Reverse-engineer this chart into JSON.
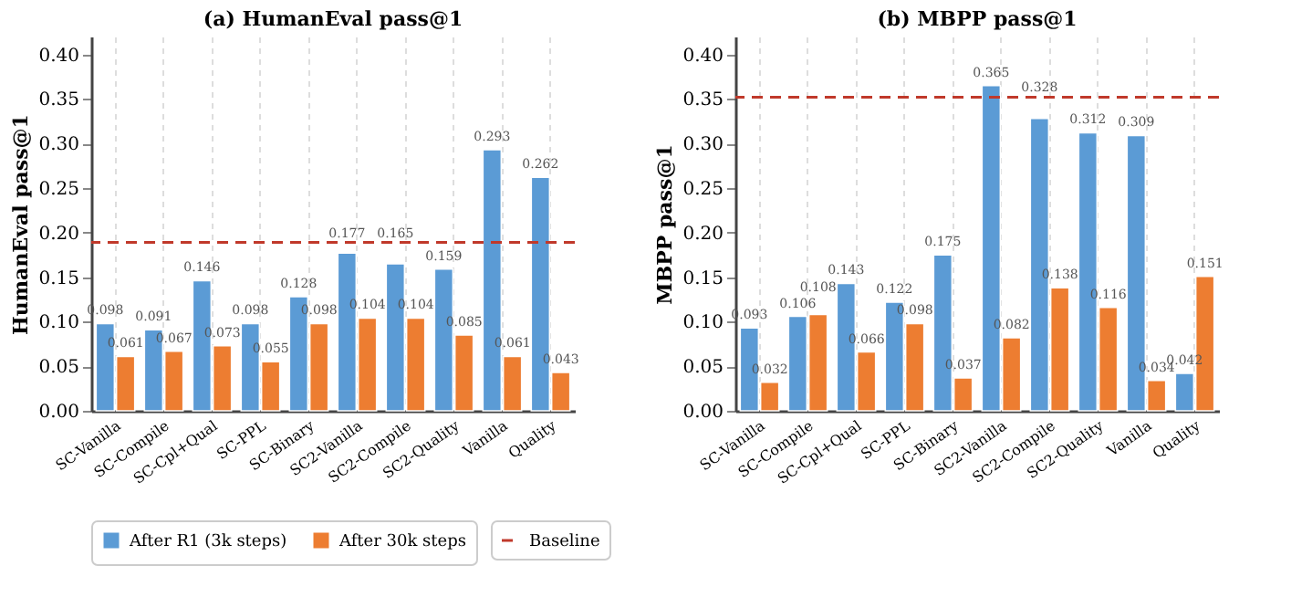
{
  "chart_data": [
    {
      "type": "bar",
      "title": "(a) HumanEval pass@1",
      "ylabel": "HumanEval pass@1",
      "categories": [
        "SC-Vanilla",
        "SC-Compile",
        "SC-Cpl+Qual",
        "SC-PPL",
        "SC-Binary",
        "SC2-Vanilla",
        "SC2-Compile",
        "SC2-Quality",
        "Vanilla",
        "Quality"
      ],
      "series": [
        {
          "name": "After R1 (3k steps)",
          "color": "#5b9bd5",
          "values": [
            0.098,
            0.091,
            0.146,
            0.098,
            0.128,
            0.177,
            0.165,
            0.159,
            0.293,
            0.262
          ]
        },
        {
          "name": "After 30k steps",
          "color": "#ed7d31",
          "values": [
            0.061,
            0.067,
            0.073,
            0.055,
            0.098,
            0.104,
            0.104,
            0.085,
            0.061,
            0.043
          ]
        }
      ],
      "ref_lines": [
        {
          "axis": "y",
          "value": 0.189,
          "label": "Baseline",
          "color": "#c0392b",
          "line_style": "dashed"
        }
      ],
      "ylim": [
        0,
        0.42
      ],
      "yticks": [
        {
          "value": 0,
          "label": "0.00"
        },
        {
          "value": 0.05,
          "label": "0.05"
        },
        {
          "value": 0.1,
          "label": "0.10"
        },
        {
          "value": 0.15,
          "label": "0.15"
        },
        {
          "value": 0.2,
          "label": "0.20"
        },
        {
          "value": 0.25,
          "label": "0.25"
        },
        {
          "value": 0.3,
          "label": "0.30"
        },
        {
          "value": 0.35,
          "label": "0.35"
        },
        {
          "value": 0.4,
          "label": "0.40"
        }
      ],
      "data_labels": true,
      "grid": "x",
      "legend": "bottom"
    },
    {
      "type": "bar",
      "title": "(b) MBPP pass@1",
      "ylabel": "MBPP pass@1",
      "categories": [
        "SC-Vanilla",
        "SC-Compile",
        "SC-Cpl+Qual",
        "SC-PPL",
        "SC-Binary",
        "SC2-Vanilla",
        "SC2-Compile",
        "SC2-Quality",
        "Vanilla",
        "Quality"
      ],
      "series": [
        {
          "name": "After R1 (3k steps)",
          "color": "#5b9bd5",
          "values": [
            0.093,
            0.106,
            0.143,
            0.122,
            0.175,
            0.365,
            0.328,
            0.312,
            0.309,
            0.042
          ]
        },
        {
          "name": "After 30k steps",
          "color": "#ed7d31",
          "values": [
            0.032,
            0.108,
            0.066,
            0.098,
            0.037,
            0.082,
            0.138,
            0.116,
            0.034,
            0.151
          ]
        }
      ],
      "ref_lines": [
        {
          "axis": "y",
          "value": 0.352,
          "color": "#c0392b",
          "line_style": "dashed"
        }
      ],
      "ylim": [
        0,
        0.42
      ],
      "yticks": [
        {
          "value": 0,
          "label": "0.00"
        },
        {
          "value": 0.05,
          "label": "0.05"
        },
        {
          "value": 0.1,
          "label": "0.10"
        },
        {
          "value": 0.15,
          "label": "0.15"
        },
        {
          "value": 0.2,
          "label": "0.20"
        },
        {
          "value": 0.25,
          "label": "0.25"
        },
        {
          "value": 0.3,
          "label": "0.30"
        },
        {
          "value": 0.35,
          "label": "0.35"
        },
        {
          "value": 0.4,
          "label": "0.40"
        }
      ],
      "data_labels": true,
      "grid": "x",
      "legend": "bottom"
    }
  ]
}
